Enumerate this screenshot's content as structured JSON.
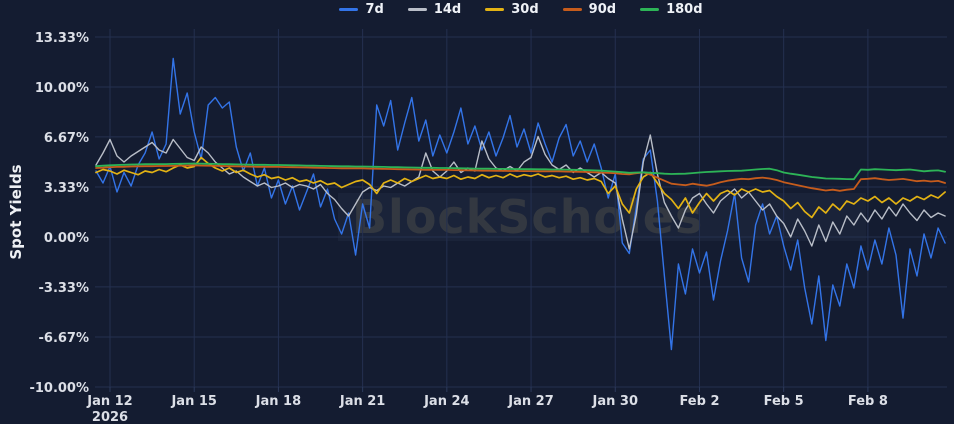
{
  "watermark": {
    "text": "BlockScholes"
  },
  "chart_data": {
    "type": "line",
    "title": "",
    "xlabel": "",
    "ylabel": "Spot Yields",
    "grid": true,
    "legend_position": "top-center",
    "background_color": "#141c31",
    "grid_color": "#243050",
    "tick_text_color": "#dcdfe7",
    "y_unit": "%",
    "y_range": [
      -10.0,
      13.33
    ],
    "x_unit": "days since Jan 12, 2026",
    "x_range_days": [
      -0.5,
      29.75
    ],
    "y_ticks": [
      {
        "value": 13.33,
        "label": "13.33%"
      },
      {
        "value": 10.0,
        "label": "10.00%"
      },
      {
        "value": 6.67,
        "label": "6.67%"
      },
      {
        "value": 3.33,
        "label": "3.33%"
      },
      {
        "value": 0.0,
        "label": "0.00%"
      },
      {
        "value": -3.33,
        "label": "-3.33%"
      },
      {
        "value": -6.67,
        "label": "-6.67%"
      },
      {
        "value": -10.0,
        "label": "-10.00%"
      }
    ],
    "x_ticks": [
      {
        "day": 0,
        "label": "Jan 12",
        "sublabel": "2026"
      },
      {
        "day": 3,
        "label": "Jan 15"
      },
      {
        "day": 6,
        "label": "Jan 18"
      },
      {
        "day": 9,
        "label": "Jan 21"
      },
      {
        "day": 12,
        "label": "Jan 24"
      },
      {
        "day": 15,
        "label": "Jan 27"
      },
      {
        "day": 18,
        "label": "Jan 30"
      },
      {
        "day": 21,
        "label": "Feb 2"
      },
      {
        "day": 24,
        "label": "Feb 5"
      },
      {
        "day": 27,
        "label": "Feb 8"
      }
    ],
    "x_start": -0.5,
    "x_step": 0.25,
    "series": [
      {
        "name": "7d",
        "color": "#3374e8",
        "width": 1.4,
        "values": [
          4.4,
          3.6,
          4.7,
          3.0,
          4.3,
          3.4,
          4.8,
          5.6,
          7.0,
          5.2,
          6.2,
          11.9,
          8.2,
          9.6,
          7.0,
          5.2,
          8.8,
          9.3,
          8.6,
          9.0,
          6.0,
          4.4,
          5.6,
          3.4,
          4.6,
          2.6,
          3.8,
          2.2,
          3.4,
          1.8,
          3.0,
          4.2,
          2.0,
          3.2,
          1.2,
          0.2,
          1.6,
          -1.2,
          2.2,
          0.6,
          8.8,
          7.4,
          9.1,
          5.8,
          7.6,
          9.3,
          6.4,
          7.8,
          5.4,
          6.8,
          5.6,
          7.0,
          8.6,
          6.2,
          7.4,
          5.8,
          7.0,
          5.4,
          6.6,
          8.1,
          6.0,
          7.2,
          5.6,
          7.6,
          6.2,
          5.0,
          6.6,
          7.5,
          5.4,
          6.4,
          5.0,
          6.2,
          4.6,
          2.6,
          4.2,
          -0.4,
          -1.1,
          2.0,
          5.2,
          5.8,
          2.4,
          -2.6,
          -7.5,
          -1.8,
          -3.8,
          -0.8,
          -2.4,
          -1.0,
          -4.2,
          -1.6,
          0.4,
          2.9,
          -1.4,
          -3.0,
          0.8,
          2.2,
          0.2,
          1.4,
          -0.6,
          -2.2,
          -0.2,
          -3.4,
          -5.8,
          -2.6,
          -6.9,
          -3.2,
          -4.6,
          -1.8,
          -3.4,
          -0.6,
          -2.2,
          -0.2,
          -1.8,
          0.6,
          -1.2,
          -5.4,
          -0.8,
          -2.6,
          0.2,
          -1.4,
          0.6,
          -0.4
        ]
      },
      {
        "name": "14d",
        "color": "#b9bec8",
        "width": 1.4,
        "values": [
          4.8,
          5.6,
          6.5,
          5.4,
          5.0,
          5.4,
          5.7,
          6.0,
          6.3,
          5.8,
          5.6,
          6.5,
          5.9,
          5.3,
          5.1,
          6.0,
          5.6,
          5.0,
          4.6,
          4.2,
          4.4,
          4.0,
          3.7,
          3.4,
          3.6,
          3.3,
          3.4,
          3.6,
          3.3,
          3.5,
          3.4,
          3.2,
          3.5,
          2.9,
          2.5,
          1.9,
          1.4,
          2.2,
          3.0,
          3.3,
          3.1,
          3.4,
          3.3,
          3.6,
          3.4,
          3.7,
          4.0,
          5.6,
          4.4,
          4.0,
          4.4,
          5.0,
          4.3,
          4.6,
          4.4,
          6.4,
          5.2,
          4.6,
          4.4,
          4.7,
          4.4,
          5.0,
          5.3,
          6.7,
          5.5,
          4.8,
          4.5,
          4.8,
          4.3,
          4.6,
          4.3,
          4.0,
          4.3,
          3.9,
          3.6,
          1.2,
          -0.8,
          1.5,
          5.0,
          6.8,
          4.2,
          2.3,
          1.4,
          0.6,
          1.8,
          2.6,
          2.9,
          2.2,
          1.6,
          2.4,
          2.8,
          3.2,
          2.6,
          3.0,
          2.4,
          1.8,
          2.2,
          1.4,
          0.9,
          0.0,
          1.2,
          0.4,
          -0.6,
          0.8,
          -0.3,
          1.0,
          0.2,
          1.4,
          0.8,
          1.6,
          1.0,
          1.8,
          1.2,
          2.0,
          1.4,
          2.2,
          1.6,
          1.1,
          1.8,
          1.3,
          1.6,
          1.4
        ]
      },
      {
        "name": "30d",
        "color": "#e2b214",
        "width": 1.7,
        "values": [
          4.3,
          4.5,
          4.4,
          4.2,
          4.45,
          4.3,
          4.15,
          4.4,
          4.3,
          4.5,
          4.35,
          4.6,
          4.8,
          4.6,
          4.7,
          5.3,
          4.9,
          4.6,
          4.4,
          4.6,
          4.3,
          4.45,
          4.2,
          4.0,
          4.15,
          3.9,
          4.0,
          3.8,
          3.95,
          3.7,
          3.8,
          3.6,
          3.75,
          3.5,
          3.6,
          3.3,
          3.5,
          3.7,
          3.8,
          3.5,
          2.9,
          3.6,
          3.8,
          3.6,
          3.9,
          3.7,
          3.9,
          4.1,
          3.9,
          4.0,
          3.9,
          4.1,
          3.85,
          4.0,
          3.9,
          4.15,
          3.95,
          4.1,
          3.95,
          4.2,
          4.0,
          4.15,
          4.05,
          4.2,
          4.0,
          4.1,
          3.95,
          4.05,
          3.85,
          3.95,
          3.8,
          3.9,
          3.7,
          2.9,
          3.4,
          2.2,
          1.6,
          3.2,
          4.0,
          4.3,
          3.6,
          2.9,
          2.5,
          1.9,
          2.6,
          1.6,
          2.3,
          2.9,
          2.4,
          2.9,
          3.1,
          2.8,
          3.2,
          3.0,
          3.2,
          3.0,
          3.1,
          2.7,
          2.4,
          1.9,
          2.3,
          1.7,
          1.3,
          2.0,
          1.6,
          2.2,
          1.8,
          2.4,
          2.2,
          2.6,
          2.4,
          2.7,
          2.3,
          2.6,
          2.2,
          2.6,
          2.4,
          2.7,
          2.5,
          2.8,
          2.6,
          3.0
        ]
      },
      {
        "name": "90d",
        "color": "#c65c1c",
        "width": 1.8,
        "values": [
          4.6,
          4.62,
          4.65,
          4.67,
          4.68,
          4.7,
          4.71,
          4.72,
          4.72,
          4.73,
          4.73,
          4.74,
          4.75,
          4.76,
          4.77,
          4.76,
          4.75,
          4.74,
          4.73,
          4.72,
          4.71,
          4.7,
          4.69,
          4.68,
          4.68,
          4.67,
          4.67,
          4.66,
          4.65,
          4.64,
          4.63,
          4.62,
          4.61,
          4.6,
          4.59,
          4.58,
          4.58,
          4.57,
          4.57,
          4.56,
          4.55,
          4.54,
          4.53,
          4.52,
          4.51,
          4.5,
          4.49,
          4.48,
          4.48,
          4.47,
          4.47,
          4.46,
          4.45,
          4.44,
          4.43,
          4.42,
          4.42,
          4.41,
          4.41,
          4.4,
          4.4,
          4.39,
          4.39,
          4.38,
          4.38,
          4.37,
          4.37,
          4.36,
          4.35,
          4.34,
          4.33,
          4.31,
          4.29,
          4.27,
          4.25,
          4.2,
          4.18,
          4.25,
          4.3,
          4.15,
          3.95,
          3.75,
          3.55,
          3.5,
          3.45,
          3.55,
          3.48,
          3.42,
          3.52,
          3.65,
          3.75,
          3.82,
          3.88,
          3.85,
          3.92,
          3.96,
          3.9,
          3.8,
          3.65,
          3.55,
          3.45,
          3.35,
          3.25,
          3.18,
          3.1,
          3.15,
          3.08,
          3.15,
          3.2,
          3.85,
          3.88,
          3.92,
          3.85,
          3.8,
          3.83,
          3.87,
          3.8,
          3.72,
          3.76,
          3.7,
          3.74,
          3.6
        ]
      },
      {
        "name": "180d",
        "color": "#2db457",
        "width": 1.8,
        "values": [
          4.72,
          4.75,
          4.78,
          4.8,
          4.81,
          4.83,
          4.84,
          4.85,
          4.85,
          4.86,
          4.86,
          4.87,
          4.88,
          4.89,
          4.9,
          4.89,
          4.88,
          4.87,
          4.86,
          4.85,
          4.84,
          4.83,
          4.82,
          4.81,
          4.81,
          4.8,
          4.8,
          4.79,
          4.78,
          4.77,
          4.76,
          4.75,
          4.74,
          4.73,
          4.72,
          4.71,
          4.71,
          4.7,
          4.7,
          4.69,
          4.68,
          4.67,
          4.66,
          4.65,
          4.64,
          4.63,
          4.62,
          4.61,
          4.61,
          4.6,
          4.6,
          4.59,
          4.58,
          4.57,
          4.56,
          4.55,
          4.55,
          4.54,
          4.54,
          4.53,
          4.53,
          4.52,
          4.52,
          4.51,
          4.51,
          4.5,
          4.5,
          4.49,
          4.48,
          4.47,
          4.46,
          4.44,
          4.42,
          4.39,
          4.36,
          4.32,
          4.28,
          4.3,
          4.31,
          4.28,
          4.25,
          4.22,
          4.2,
          4.21,
          4.22,
          4.26,
          4.3,
          4.33,
          4.35,
          4.38,
          4.4,
          4.41,
          4.42,
          4.46,
          4.5,
          4.53,
          4.55,
          4.45,
          4.3,
          4.22,
          4.15,
          4.08,
          4.0,
          3.95,
          3.9,
          3.89,
          3.88,
          3.86,
          3.85,
          4.5,
          4.48,
          4.52,
          4.5,
          4.47,
          4.45,
          4.48,
          4.5,
          4.44,
          4.38,
          4.42,
          4.44,
          4.35
        ]
      }
    ]
  }
}
